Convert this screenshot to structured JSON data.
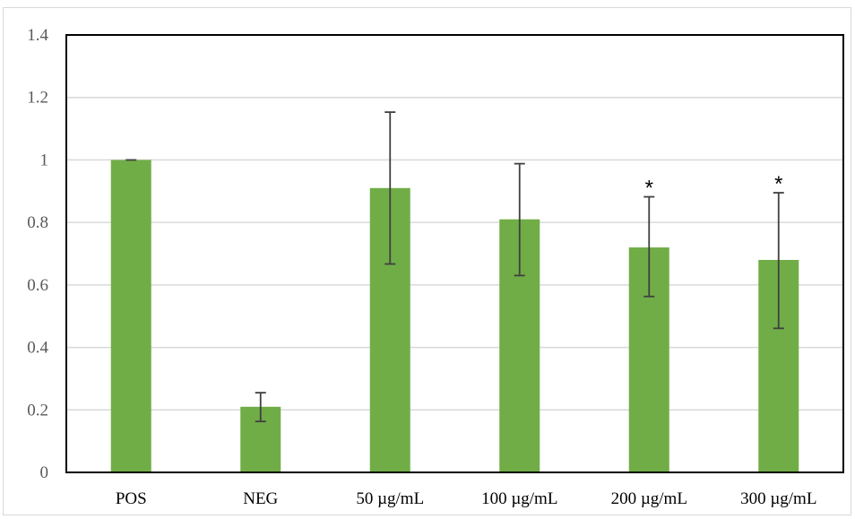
{
  "chart_data": {
    "type": "bar",
    "categories": [
      "POS",
      "NEG",
      "50 µg/mL",
      "100 µg/mL",
      "200 µg/mL",
      "300 µg/mL"
    ],
    "values": [
      1.0,
      0.21,
      0.91,
      0.81,
      0.72,
      0.68
    ],
    "error_upper": [
      1.0,
      0.255,
      1.153,
      0.988,
      0.882,
      0.895
    ],
    "error_lower": [
      1.0,
      0.163,
      0.667,
      0.63,
      0.563,
      0.461
    ],
    "annotations": [
      "",
      "",
      "",
      "",
      "*",
      "*"
    ],
    "title": "",
    "xlabel": "",
    "ylabel": "",
    "ylim": [
      0,
      1.4
    ],
    "yticks": [
      0,
      0.2,
      0.4,
      0.6,
      0.8,
      1,
      1.2,
      1.4
    ],
    "ytick_labels": [
      "0",
      "0.2",
      "0.4",
      "0.6",
      "0.8",
      "1",
      "1.2",
      "1.4"
    ],
    "grid": true,
    "legend": "none",
    "colors": {
      "bar": "#70ad47",
      "error_bar": "#404040",
      "grid": "#d9d9d9",
      "frame": "#000000",
      "outer_border": "#d9d9d9"
    }
  }
}
